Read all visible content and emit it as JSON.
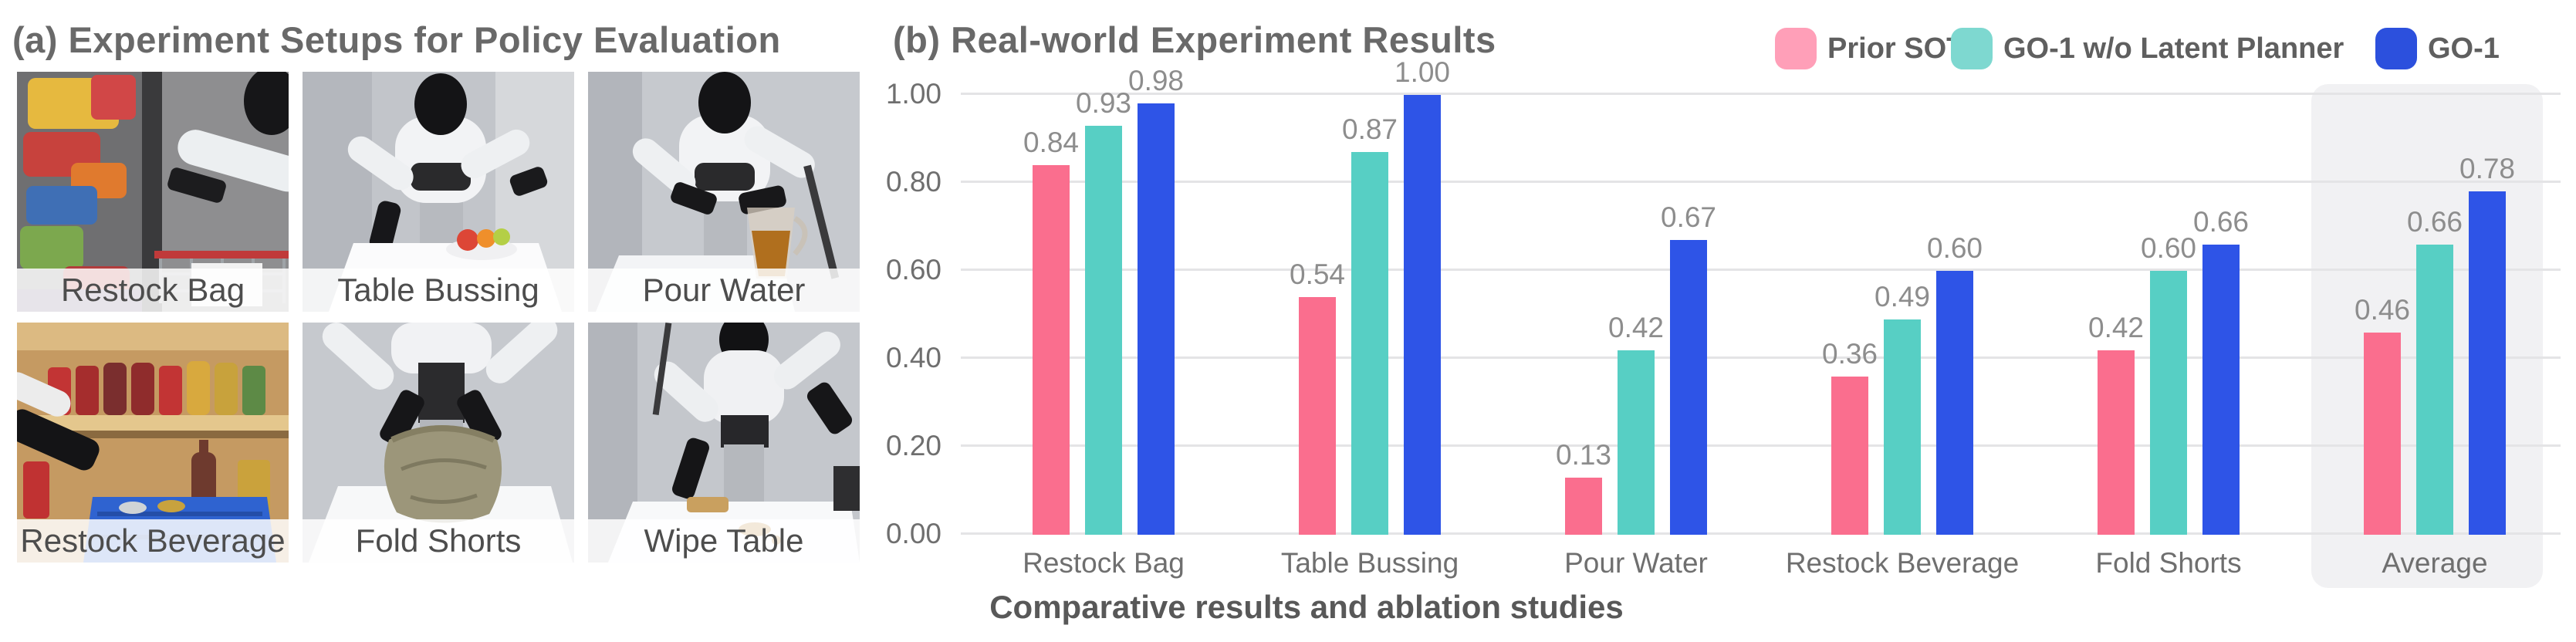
{
  "panel_a": {
    "title": "(a) Experiment Setups for Policy Evaluation",
    "photos": [
      {
        "label": "Restock Bag"
      },
      {
        "label": "Table Bussing"
      },
      {
        "label": "Pour Water"
      },
      {
        "label": "Restock Beverage"
      },
      {
        "label": "Fold Shorts"
      },
      {
        "label": "Wipe Table"
      }
    ]
  },
  "panel_b": {
    "title": "(b) Real-world Experiment Results",
    "caption": "Comparative results and ablation studies"
  },
  "legend": {
    "items": [
      {
        "label": "Prior SOTA",
        "color": "#FF9FB8"
      },
      {
        "label": "GO-1 w/o Latent Planner",
        "color": "#7ED8D0"
      },
      {
        "label": "GO-1",
        "color": "#2C50DD"
      }
    ]
  },
  "chart_data": {
    "type": "bar",
    "title": "(b) Real-world Experiment Results",
    "categories": [
      "Restock Bag",
      "Table Bussing",
      "Pour Water",
      "Restock Beverage",
      "Fold Shorts",
      "Average"
    ],
    "series": [
      {
        "name": "Prior SOTA",
        "color": "#FA6E8E",
        "values": [
          0.84,
          0.54,
          0.13,
          0.36,
          0.42,
          0.46
        ]
      },
      {
        "name": "GO-1 w/o Latent Planner",
        "color": "#57CFC4",
        "values": [
          0.93,
          0.87,
          0.42,
          0.49,
          0.6,
          0.66
        ]
      },
      {
        "name": "GO-1",
        "color": "#2E54E7",
        "values": [
          0.98,
          1.0,
          0.67,
          0.6,
          0.66,
          0.78
        ]
      }
    ],
    "ylim": [
      0,
      1.0
    ],
    "yticks": [
      "0.00",
      "0.20",
      "0.40",
      "0.60",
      "0.80",
      "1.00"
    ],
    "grid": true,
    "value_labels": true,
    "legend_position": "top-right",
    "highlight_category": "Average",
    "xlabel": "Comparative results and ablation studies",
    "ylabel": ""
  }
}
